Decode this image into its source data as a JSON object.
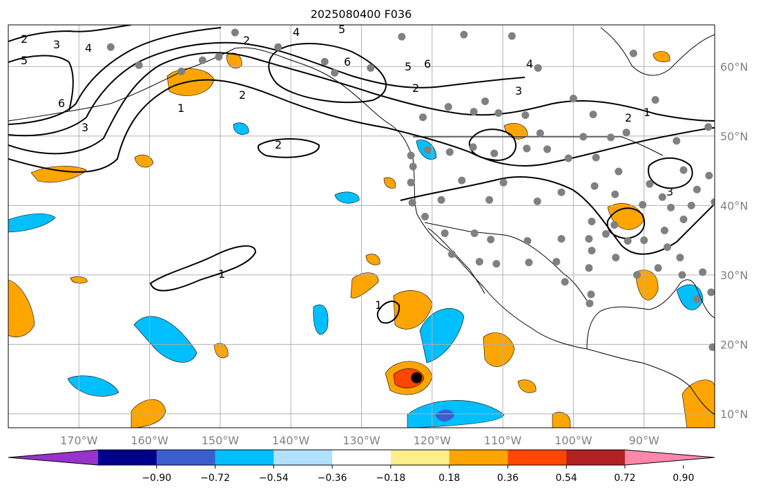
{
  "title": "2025080400 F036",
  "map": {
    "lon_range": [
      -180,
      -80
    ],
    "lat_range": [
      8,
      66
    ],
    "lon_ticks": [
      {
        "value": -170,
        "label": "170°W"
      },
      {
        "value": -160,
        "label": "160°W"
      },
      {
        "value": -150,
        "label": "150°W"
      },
      {
        "value": -140,
        "label": "140°W"
      },
      {
        "value": -130,
        "label": "130°W"
      },
      {
        "value": -120,
        "label": "120°W"
      },
      {
        "value": -110,
        "label": "110°W"
      },
      {
        "value": -100,
        "label": "100°W"
      },
      {
        "value": -90,
        "label": "90°W"
      }
    ],
    "lat_ticks": [
      {
        "value": 60,
        "label": "60°N"
      },
      {
        "value": 50,
        "label": "50°N"
      },
      {
        "value": 40,
        "label": "40°N"
      },
      {
        "value": 30,
        "label": "30°N"
      },
      {
        "value": 20,
        "label": "20°N"
      },
      {
        "value": 10,
        "label": "10°N"
      }
    ],
    "gridlines": true,
    "colors": {
      "land_outline": "#000000",
      "grid": "#b0b0b0",
      "contour": "#000000",
      "station_marker": "#808080",
      "storm_center": "#000000"
    }
  },
  "colorbar": {
    "orientation": "horizontal",
    "extend": "both",
    "boundaries": [
      -0.9,
      -0.72,
      -0.54,
      -0.36,
      -0.18,
      0.18,
      0.36,
      0.54,
      0.72,
      0.9
    ],
    "tick_labels": [
      "−0.90",
      "−0.72",
      "−0.54",
      "−0.36",
      "−0.18",
      "0.18",
      "0.36",
      "0.54",
      "0.72",
      "0.90"
    ],
    "colors": [
      "#9932cc",
      "#00008b",
      "#3a5fcd",
      "#00bfff",
      "#b0e2ff",
      "#ffffff",
      "#ffec8b",
      "#ffa500",
      "#ff4500",
      "#b22222",
      "#ff88aa"
    ]
  },
  "contours": [
    {
      "level": "1",
      "label": "1"
    },
    {
      "level": "2",
      "label": "2"
    },
    {
      "level": "3",
      "label": "3"
    },
    {
      "level": "4",
      "label": "4"
    },
    {
      "level": "5",
      "label": "5"
    },
    {
      "level": "6",
      "label": "6"
    }
  ],
  "storm_center": {
    "lon": -122.2,
    "lat": 15.2
  },
  "stations": [
    [
      -165.5,
      62.8
    ],
    [
      -161.5,
      60.2
    ],
    [
      -155.5,
      59.3
    ],
    [
      -152.5,
      60.9
    ],
    [
      -150.2,
      61.4
    ],
    [
      -147.9,
      64.9
    ],
    [
      -141.8,
      62.8
    ],
    [
      -135.2,
      60.7
    ],
    [
      -133.8,
      59.1
    ],
    [
      -128.7,
      59.8
    ],
    [
      -124.3,
      64.3
    ],
    [
      -115.5,
      64.6
    ],
    [
      -108.7,
      64.4
    ],
    [
      -105.0,
      59.8
    ],
    [
      -112.5,
      55.0
    ],
    [
      -117.7,
      54.2
    ],
    [
      -121.3,
      52.7
    ],
    [
      -114.1,
      53.5
    ],
    [
      -110.6,
      53.3
    ],
    [
      -106.8,
      53.0
    ],
    [
      -104.7,
      50.4
    ],
    [
      -100.0,
      55.4
    ],
    [
      -98.6,
      49.9
    ],
    [
      -94.7,
      49.8
    ],
    [
      -97.2,
      53.1
    ],
    [
      -92.5,
      50.5
    ],
    [
      -91.5,
      61.9
    ],
    [
      -88.4,
      55.2
    ],
    [
      -85.4,
      49.3
    ],
    [
      -80.9,
      51.3
    ],
    [
      -80.8,
      44.3
    ],
    [
      -82.5,
      42.3
    ],
    [
      -84.4,
      45.1
    ],
    [
      -87.4,
      41.2
    ],
    [
      -89.2,
      43.1
    ],
    [
      -93.6,
      44.9
    ],
    [
      -96.8,
      46.9
    ],
    [
      -100.7,
      46.8
    ],
    [
      -103.7,
      48.1
    ],
    [
      -106.6,
      48.2
    ],
    [
      -111.2,
      47.5
    ],
    [
      -114.2,
      48.4
    ],
    [
      -117.5,
      47.7
    ],
    [
      -120.6,
      48.0
    ],
    [
      -123.0,
      47.2
    ],
    [
      -122.7,
      45.6
    ],
    [
      -123.0,
      43.3
    ],
    [
      -122.8,
      40.4
    ],
    [
      -118.7,
      40.8
    ],
    [
      -115.8,
      43.6
    ],
    [
      -111.9,
      40.8
    ],
    [
      -109.9,
      43.3
    ],
    [
      -105.1,
      40.6
    ],
    [
      -101.7,
      41.9
    ],
    [
      -97.0,
      42.8
    ],
    [
      -94.1,
      41.6
    ],
    [
      -90.2,
      40.1
    ],
    [
      -86.2,
      39.7
    ],
    [
      -83.3,
      40.0
    ],
    [
      -80.0,
      40.5
    ],
    [
      -84.4,
      38.0
    ],
    [
      -87.1,
      36.4
    ],
    [
      -90.0,
      35.0
    ],
    [
      -92.3,
      34.9
    ],
    [
      -95.4,
      35.9
    ],
    [
      -97.8,
      35.2
    ],
    [
      -101.7,
      35.2
    ],
    [
      -106.5,
      34.9
    ],
    [
      -111.7,
      35.1
    ],
    [
      -114.0,
      36.0
    ],
    [
      -118.2,
      36.0
    ],
    [
      -121.0,
      38.4
    ],
    [
      -117.2,
      33.0
    ],
    [
      -113.3,
      31.9
    ],
    [
      -110.9,
      31.6
    ],
    [
      -106.3,
      31.8
    ],
    [
      -102.4,
      31.9
    ],
    [
      -97.8,
      31.0
    ],
    [
      -94.0,
      32.5
    ],
    [
      -91.0,
      30.0
    ],
    [
      -88.0,
      31.0
    ],
    [
      -84.6,
      30.0
    ],
    [
      -81.7,
      30.4
    ],
    [
      -80.5,
      27.5
    ],
    [
      -82.5,
      26.5
    ],
    [
      -86.7,
      34.0
    ],
    [
      -84.9,
      32.5
    ],
    [
      -97.5,
      27.2
    ],
    [
      -97.7,
      25.9
    ],
    [
      -101.2,
      29.0
    ],
    [
      -80.3,
      19.6
    ],
    [
      -94.2,
      37.2
    ],
    [
      -97.4,
      37.7
    ],
    [
      -97.4,
      33.5
    ]
  ],
  "attribution_note": ""
}
